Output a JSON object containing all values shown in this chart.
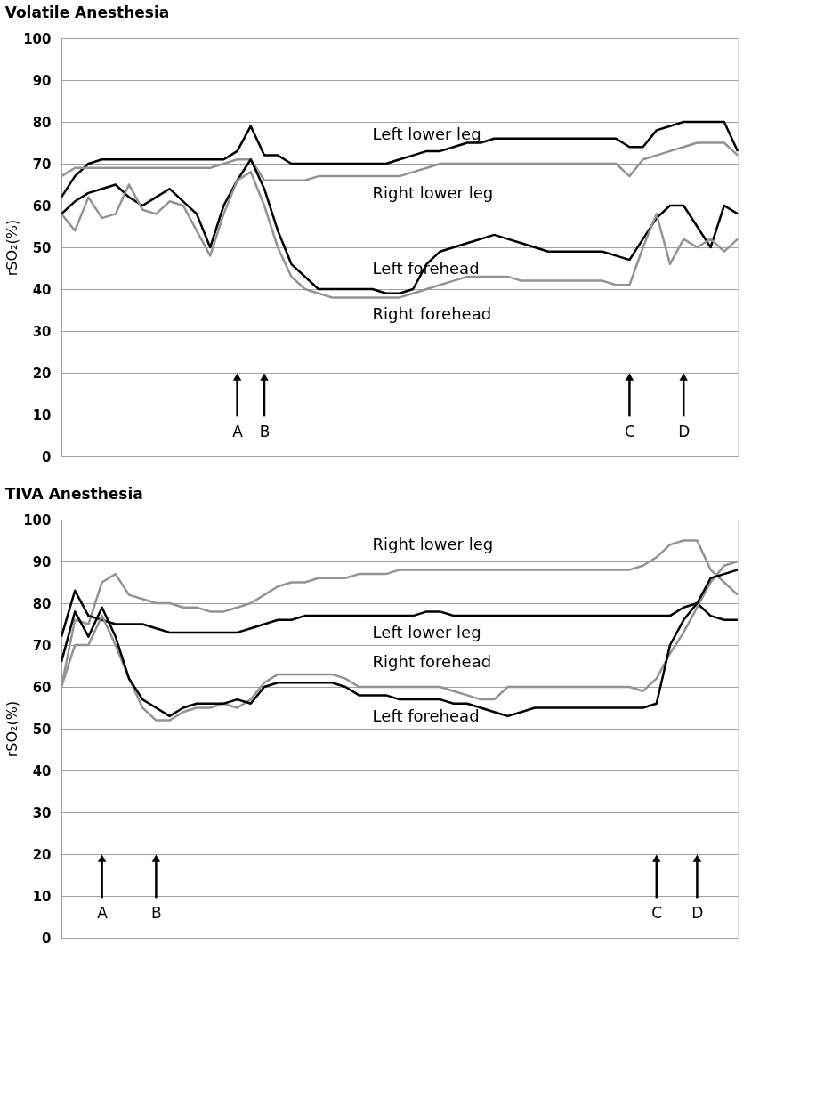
{
  "chart_data": [
    {
      "type": "line",
      "title": "Volatile Anesthesia",
      "ylabel": "rSO₂(%)",
      "ylim": [
        0,
        100
      ],
      "yticks": [
        0,
        10,
        20,
        30,
        40,
        50,
        60,
        70,
        80,
        90,
        100
      ],
      "grid": "y",
      "marker": "none",
      "line_style": "solid",
      "categories": [
        null,
        null,
        null,
        null,
        null,
        null,
        null,
        null,
        null,
        null,
        null,
        null,
        null,
        "A",
        null,
        "B",
        null,
        null,
        null,
        null,
        null,
        null,
        null,
        null,
        null,
        null,
        null,
        null,
        null,
        null,
        null,
        null,
        null,
        null,
        null,
        null,
        null,
        null,
        null,
        null,
        null,
        null,
        "C",
        null,
        null,
        null,
        "D",
        null,
        null,
        null,
        null
      ],
      "series": [
        {
          "name": "Left lower leg",
          "color": "#000000",
          "values": [
            62,
            67,
            70,
            71,
            71,
            71,
            71,
            71,
            71,
            71,
            71,
            71,
            71,
            73,
            79,
            72,
            72,
            70,
            70,
            70,
            70,
            70,
            70,
            70,
            70,
            71,
            72,
            73,
            73,
            74,
            75,
            75,
            76,
            76,
            76,
            76,
            76,
            76,
            76,
            76,
            76,
            76,
            74,
            74,
            78,
            79,
            80,
            80,
            80,
            80,
            73
          ]
        },
        {
          "name": "Right lower leg",
          "color": "#939393",
          "values": [
            67,
            69,
            69,
            69,
            69,
            69,
            69,
            69,
            69,
            69,
            69,
            69,
            70,
            71,
            71,
            66,
            66,
            66,
            66,
            67,
            67,
            67,
            67,
            67,
            67,
            67,
            68,
            69,
            70,
            70,
            70,
            70,
            70,
            70,
            70,
            70,
            70,
            70,
            70,
            70,
            70,
            70,
            67,
            71,
            72,
            73,
            74,
            75,
            75,
            75,
            72
          ]
        },
        {
          "name": "Left forehead",
          "color": "#000000",
          "values": [
            58,
            61,
            63,
            64,
            65,
            62,
            60,
            62,
            64,
            61,
            58,
            50,
            60,
            66,
            71,
            64,
            54,
            46,
            43,
            40,
            40,
            40,
            40,
            40,
            39,
            39,
            40,
            46,
            49,
            50,
            51,
            52,
            53,
            52,
            51,
            50,
            49,
            49,
            49,
            49,
            49,
            48,
            47,
            52,
            57,
            60,
            60,
            55,
            50,
            60,
            58
          ]
        },
        {
          "name": "Right forehead",
          "color": "#939393",
          "values": [
            58,
            54,
            62,
            57,
            58,
            65,
            59,
            58,
            61,
            60,
            54,
            48,
            58,
            66,
            68,
            60,
            50,
            43,
            40,
            39,
            38,
            38,
            38,
            38,
            38,
            38,
            39,
            40,
            41,
            42,
            43,
            43,
            43,
            43,
            42,
            42,
            42,
            42,
            42,
            42,
            42,
            41,
            41,
            50,
            58,
            46,
            52,
            50,
            52,
            49,
            52
          ]
        }
      ]
    },
    {
      "type": "line",
      "title": "TIVA Anesthesia",
      "ylabel": "rSO₂(%)",
      "ylim": [
        0,
        100
      ],
      "yticks": [
        0,
        10,
        20,
        30,
        40,
        50,
        60,
        70,
        80,
        90,
        100
      ],
      "grid": "y",
      "marker": "none",
      "line_style": "solid",
      "categories": [
        null,
        null,
        null,
        "A",
        null,
        null,
        null,
        "B",
        null,
        null,
        null,
        null,
        null,
        null,
        null,
        null,
        null,
        null,
        null,
        null,
        null,
        null,
        null,
        null,
        null,
        null,
        null,
        null,
        null,
        null,
        null,
        null,
        null,
        null,
        null,
        null,
        null,
        null,
        null,
        null,
        null,
        null,
        null,
        null,
        "C",
        null,
        null,
        "D",
        null,
        null,
        null
      ],
      "series": [
        {
          "name": "Right lower leg",
          "color": "#939393",
          "values": [
            60,
            76,
            75,
            85,
            87,
            82,
            81,
            80,
            80,
            79,
            79,
            78,
            78,
            79,
            80,
            82,
            84,
            85,
            85,
            86,
            86,
            86,
            87,
            87,
            87,
            88,
            88,
            88,
            88,
            88,
            88,
            88,
            88,
            88,
            88,
            88,
            88,
            88,
            88,
            88,
            88,
            88,
            88,
            89,
            91,
            94,
            95,
            95,
            88,
            85,
            82
          ]
        },
        {
          "name": "Left lower leg",
          "color": "#000000",
          "values": [
            72,
            83,
            77,
            76,
            75,
            75,
            75,
            74,
            73,
            73,
            73,
            73,
            73,
            73,
            74,
            75,
            76,
            76,
            77,
            77,
            77,
            77,
            77,
            77,
            77,
            77,
            77,
            78,
            78,
            77,
            77,
            77,
            77,
            77,
            77,
            77,
            77,
            77,
            77,
            77,
            77,
            77,
            77,
            77,
            77,
            77,
            79,
            80,
            77,
            76,
            76
          ]
        },
        {
          "name": "Right forehead",
          "color": "#939393",
          "values": [
            60,
            70,
            70,
            77,
            70,
            62,
            55,
            52,
            52,
            54,
            55,
            55,
            56,
            55,
            57,
            61,
            63,
            63,
            63,
            63,
            63,
            62,
            60,
            60,
            60,
            60,
            60,
            60,
            60,
            59,
            58,
            57,
            57,
            60,
            60,
            60,
            60,
            60,
            60,
            60,
            60,
            60,
            60,
            59,
            62,
            68,
            73,
            79,
            85,
            89,
            90
          ]
        },
        {
          "name": "Left forehead",
          "color": "#000000",
          "values": [
            66,
            78,
            72,
            79,
            72,
            62,
            57,
            55,
            53,
            55,
            56,
            56,
            56,
            57,
            56,
            60,
            61,
            61,
            61,
            61,
            61,
            60,
            58,
            58,
            58,
            57,
            57,
            57,
            57,
            56,
            56,
            55,
            54,
            53,
            54,
            55,
            55,
            55,
            55,
            55,
            55,
            55,
            55,
            55,
            56,
            70,
            76,
            80,
            86,
            87,
            88
          ]
        }
      ]
    }
  ]
}
